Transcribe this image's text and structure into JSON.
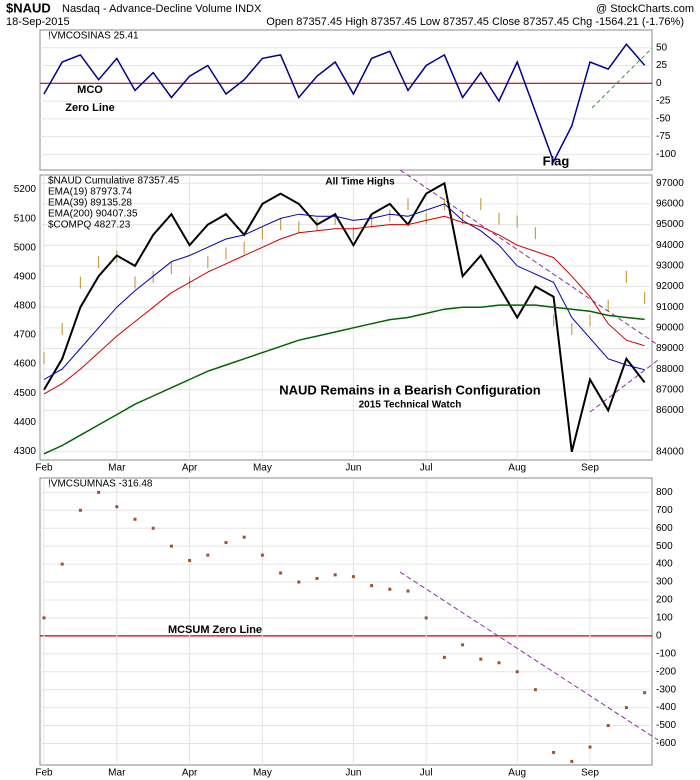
{
  "header": {
    "symbol": "$NAUD",
    "name": "Nasdaq - Advance-Decline Volume INDX",
    "source": "@ StockCharts.com",
    "date": "18-Sep-2015",
    "quote": "Open 87357.45  High 87357.45  Low 87357.45  Close 87357.45  Chg -1564.21 (-1.76%)"
  },
  "annotations": {
    "mco": "MCO",
    "mco_zero": "Zero Line",
    "flag": "Flag",
    "ath": "All Time Highs",
    "headline": "NAUD Remains in a Bearish Configuration",
    "credit": "2015 Technical Watch",
    "mcsum_zero": "MCSUM Zero Line"
  },
  "chart_data": [
    {
      "type": "line",
      "ylim": [
        -122,
        75
      ],
      "yticks": [
        50,
        25,
        0,
        -25,
        -50,
        -75,
        -100
      ],
      "grid": true,
      "zero_line": true,
      "series": [
        {
          "name": "!VMCOSINAS 25.41",
          "color": "#00008b",
          "values": [
            -15,
            30,
            40,
            5,
            35,
            -10,
            15,
            -20,
            10,
            25,
            -15,
            5,
            35,
            40,
            -20,
            10,
            30,
            -15,
            35,
            45,
            -10,
            25,
            40,
            -20,
            15,
            -25,
            30,
            -40,
            -110,
            -60,
            30,
            20,
            55,
            25.41
          ]
        }
      ]
    },
    {
      "type": "line",
      "ylim": [
        4270,
        5250
      ],
      "yticks": [
        5200,
        5100,
        5000,
        4900,
        4800,
        4700,
        4600,
        4500,
        4400,
        4300
      ],
      "y2lim": [
        83600,
        97400
      ],
      "y2ticks": [
        97000,
        96000,
        95000,
        94000,
        93000,
        92000,
        91000,
        90000,
        89000,
        88000,
        87000,
        86000,
        84000
      ],
      "grid": true,
      "categories": [
        "Feb",
        null,
        null,
        null,
        "Mar",
        null,
        null,
        null,
        "Apr",
        null,
        null,
        null,
        "May",
        null,
        null,
        null,
        null,
        "Jun",
        null,
        null,
        null,
        "Jul",
        null,
        null,
        null,
        null,
        "Aug",
        null,
        null,
        null,
        "Sep",
        null,
        null,
        null
      ],
      "series": [
        {
          "name": "$NAUD Cumulative 87357.45",
          "color": "#000000",
          "axis": "y2",
          "width": 2,
          "values": [
            87000,
            88500,
            91000,
            92500,
            93500,
            93000,
            94500,
            95500,
            94000,
            95000,
            95500,
            94500,
            96000,
            96500,
            96000,
            95000,
            95500,
            94000,
            95500,
            96000,
            95000,
            96500,
            97000,
            92500,
            93500,
            92000,
            90500,
            92000,
            91500,
            84000,
            87500,
            86000,
            88500,
            87357.45
          ]
        },
        {
          "name": "EMA(19) 87973.74",
          "color": "#0000aa",
          "axis": "y2",
          "width": 1,
          "values": [
            87500,
            88000,
            89000,
            90000,
            91000,
            91800,
            92500,
            93200,
            93500,
            93900,
            94300,
            94500,
            94900,
            95300,
            95500,
            95400,
            95400,
            95200,
            95300,
            95500,
            95400,
            95700,
            96000,
            95200,
            94700,
            94000,
            93000,
            92600,
            92200,
            90500,
            89500,
            88500,
            88200,
            87973.74
          ]
        },
        {
          "name": "EMA(39) 89135.28",
          "color": "#cc0000",
          "axis": "y2",
          "width": 1,
          "values": [
            86800,
            87300,
            88000,
            88800,
            89600,
            90300,
            91000,
            91700,
            92200,
            92700,
            93100,
            93500,
            93900,
            94300,
            94600,
            94700,
            94800,
            94800,
            94900,
            95000,
            95000,
            95200,
            95400,
            95100,
            94900,
            94500,
            94000,
            93700,
            93400,
            92500,
            91500,
            90200,
            89400,
            89135.28
          ]
        },
        {
          "name": "EMA(200) 90407.35",
          "color": "#006400",
          "axis": "y2",
          "width": 1.5,
          "values": [
            83900,
            84300,
            84800,
            85300,
            85800,
            86300,
            86700,
            87100,
            87500,
            87900,
            88200,
            88500,
            88800,
            89100,
            89400,
            89600,
            89800,
            90000,
            90200,
            90400,
            90500,
            90700,
            90900,
            91000,
            91000,
            91100,
            91100,
            91100,
            91000,
            90900,
            90800,
            90600,
            90500,
            90407.35
          ]
        },
        {
          "name": "$COMPQ 4827.23",
          "color": "#c8a040",
          "style": "bars",
          "values": [
            4620,
            4720,
            4880,
            4950,
            4970,
            4880,
            4900,
            4930,
            4880,
            4950,
            4980,
            5000,
            5050,
            5080,
            5070,
            5080,
            5100,
            5050,
            5090,
            5110,
            5150,
            5100,
            5150,
            5100,
            5150,
            5100,
            5090,
            5050,
            4750,
            4720,
            4750,
            4800,
            4900,
            4827.23
          ]
        }
      ]
    },
    {
      "type": "line",
      "ylim": [
        -720,
        880
      ],
      "yticks": [
        800,
        700,
        600,
        500,
        400,
        300,
        200,
        100,
        0,
        -100,
        -200,
        -300,
        -400,
        -500,
        -600
      ],
      "grid": true,
      "zero_line": true,
      "categories": [
        "Feb",
        null,
        null,
        null,
        "Mar",
        null,
        null,
        null,
        "Apr",
        null,
        null,
        null,
        "May",
        null,
        null,
        null,
        null,
        "Jun",
        null,
        null,
        null,
        "Jul",
        null,
        null,
        null,
        null,
        "Aug",
        null,
        null,
        null,
        "Sep",
        null,
        null,
        null
      ],
      "series": [
        {
          "name": "!VMCSUMNAS -316.48",
          "color": "#a0522d",
          "style": "dots",
          "values": [
            100,
            400,
            700,
            800,
            720,
            650,
            600,
            500,
            420,
            450,
            520,
            550,
            450,
            350,
            300,
            320,
            340,
            330,
            280,
            260,
            250,
            100,
            -120,
            -50,
            -130,
            -150,
            -200,
            -300,
            -650,
            -700,
            -620,
            -500,
            -400,
            -316.48
          ]
        }
      ]
    }
  ]
}
